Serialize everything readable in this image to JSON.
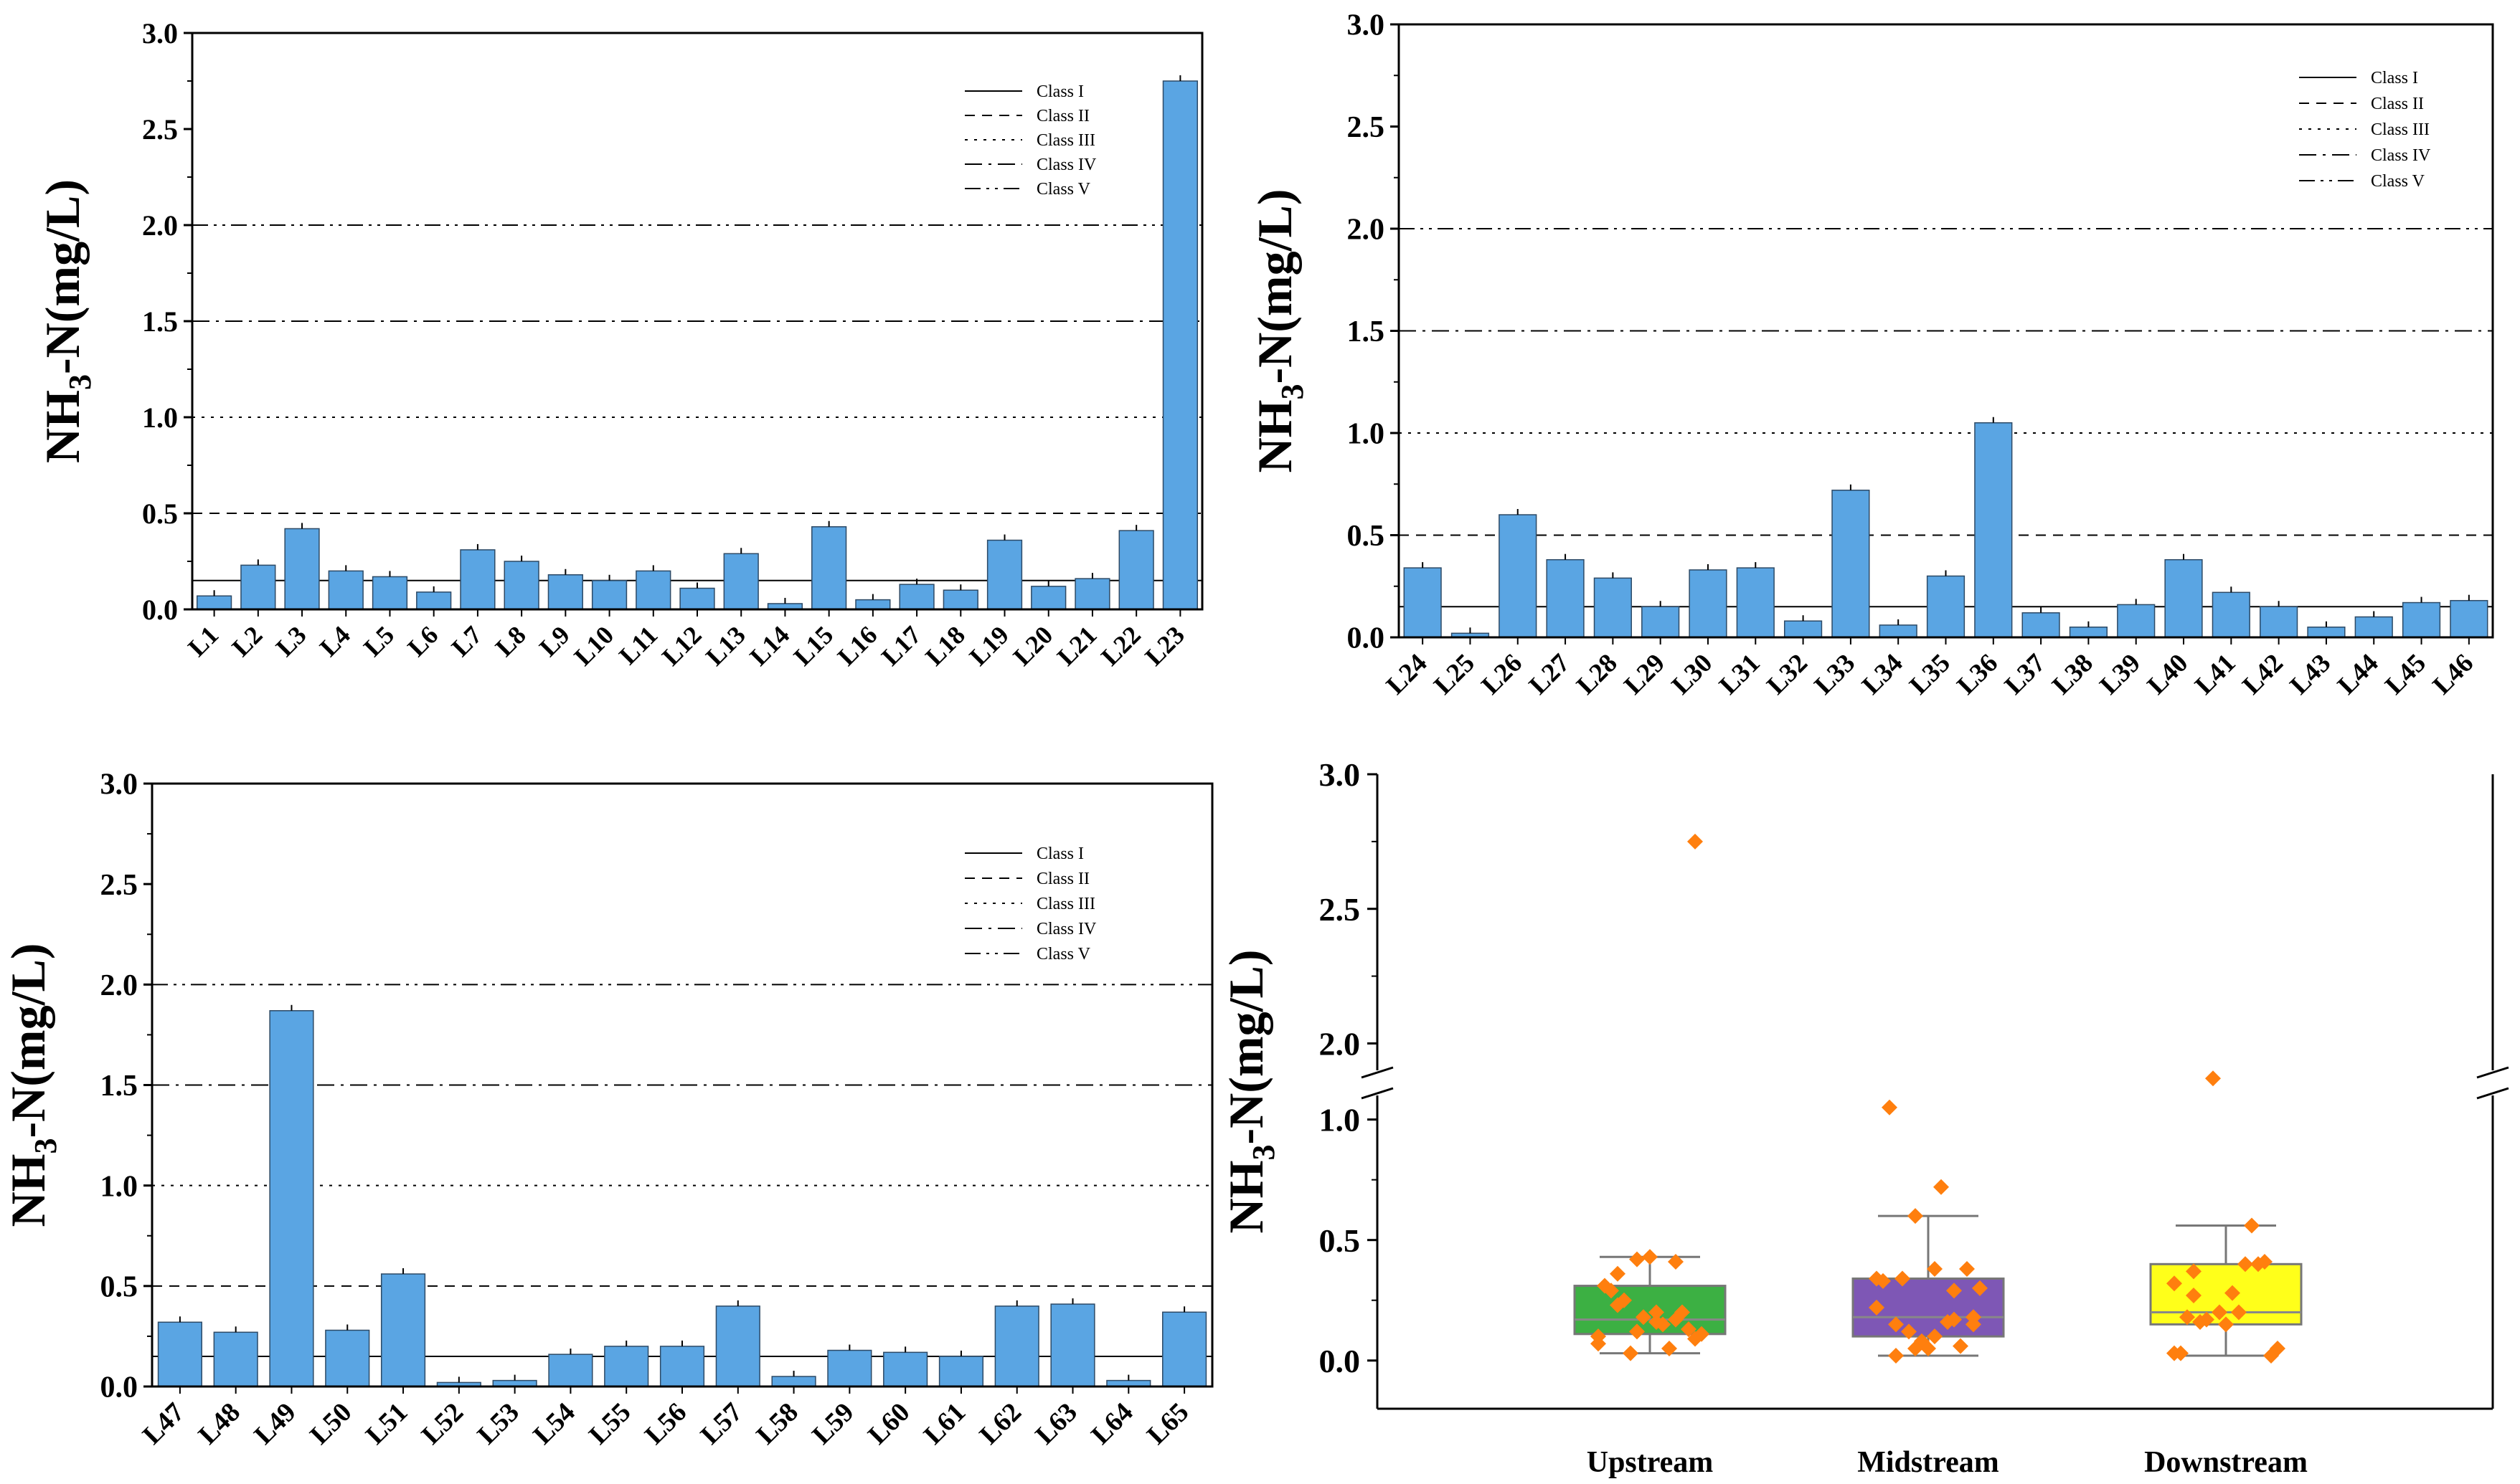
{
  "figure": {
    "legend_items": [
      "Class I",
      "Class II",
      "Class III",
      "Class IV",
      "Class V"
    ],
    "colors": {
      "bar": "#5aa5e3",
      "bar_stroke": "#2d4a66",
      "axis": "#000000",
      "point": "#ff7f0e"
    }
  },
  "chart_data": [
    {
      "type": "bar",
      "panel": "top-left",
      "ylabel": {
        "main": "NH",
        "sub": "3",
        "rest": "-N(mg/L)"
      },
      "ylim": [
        0,
        3.0
      ],
      "yticks": [
        "0.0",
        "0.5",
        "1.0",
        "1.5",
        "2.0",
        "2.5",
        "3.0"
      ],
      "categories": [
        "L1",
        "L2",
        "L3",
        "L4",
        "L5",
        "L6",
        "L7",
        "L8",
        "L9",
        "L10",
        "L11",
        "L12",
        "L13",
        "L14",
        "L15",
        "L16",
        "L17",
        "L18",
        "L19",
        "L20",
        "L21",
        "L22",
        "L23"
      ],
      "values": [
        0.07,
        0.23,
        0.42,
        0.2,
        0.17,
        0.09,
        0.31,
        0.25,
        0.18,
        0.15,
        0.2,
        0.11,
        0.29,
        0.03,
        0.43,
        0.05,
        0.13,
        0.1,
        0.36,
        0.12,
        0.16,
        0.41,
        2.75
      ],
      "legend": "top-right",
      "reference_lines": [
        {
          "name": "Class I",
          "value": 0.15
        },
        {
          "name": "Class II",
          "value": 0.5
        },
        {
          "name": "Class III",
          "value": 1.0
        },
        {
          "name": "Class IV",
          "value": 1.5
        },
        {
          "name": "Class V",
          "value": 2.0
        }
      ]
    },
    {
      "type": "bar",
      "panel": "top-right",
      "ylabel": {
        "main": "NH",
        "sub": "3",
        "rest": "-N(mg/L)"
      },
      "ylim": [
        0,
        3.0
      ],
      "yticks": [
        "0.0",
        "0.5",
        "1.0",
        "1.5",
        "2.0",
        "2.5",
        "3.0"
      ],
      "categories": [
        "L24",
        "L25",
        "L26",
        "L27",
        "L28",
        "L29",
        "L30",
        "L31",
        "L32",
        "L33",
        "L34",
        "L35",
        "L36",
        "L37",
        "L38",
        "L39",
        "L40",
        "L41",
        "L42",
        "L43",
        "L44",
        "L45",
        "L46"
      ],
      "values": [
        0.34,
        0.02,
        0.6,
        0.38,
        0.29,
        0.15,
        0.33,
        0.34,
        0.08,
        0.72,
        0.06,
        0.3,
        1.05,
        0.12,
        0.05,
        0.16,
        0.38,
        0.22,
        0.15,
        0.05,
        0.1,
        0.17,
        0.18
      ],
      "legend": "top-right",
      "reference_lines": [
        {
          "name": "Class I",
          "value": 0.15
        },
        {
          "name": "Class II",
          "value": 0.5
        },
        {
          "name": "Class III",
          "value": 1.0
        },
        {
          "name": "Class IV",
          "value": 1.5
        },
        {
          "name": "Class V",
          "value": 2.0
        }
      ]
    },
    {
      "type": "bar",
      "panel": "bottom-left",
      "ylabel": {
        "main": "NH",
        "sub": "3",
        "rest": "-N(mg/L)"
      },
      "ylim": [
        0,
        3.0
      ],
      "yticks": [
        "0.0",
        "0.5",
        "1.0",
        "1.5",
        "2.0",
        "2.5",
        "3.0"
      ],
      "categories": [
        "L47",
        "L48",
        "L49",
        "L50",
        "L51",
        "L52",
        "L53",
        "L54",
        "L55",
        "L56",
        "L57",
        "L58",
        "L59",
        "L60",
        "L61",
        "L62",
        "L63",
        "L64",
        "L65"
      ],
      "values": [
        0.32,
        0.27,
        1.87,
        0.28,
        0.56,
        0.02,
        0.03,
        0.16,
        0.2,
        0.2,
        0.4,
        0.05,
        0.18,
        0.17,
        0.15,
        0.4,
        0.41,
        0.03,
        0.37
      ],
      "legend": "top-right",
      "reference_lines": [
        {
          "name": "Class I",
          "value": 0.15
        },
        {
          "name": "Class II",
          "value": 0.5
        },
        {
          "name": "Class III",
          "value": 1.0
        },
        {
          "name": "Class IV",
          "value": 1.5
        },
        {
          "name": "Class V",
          "value": 2.0
        }
      ]
    },
    {
      "type": "box",
      "panel": "bottom-right",
      "ylabel": {
        "main": "NH",
        "sub": "3",
        "rest": "-N(mg/L)"
      },
      "ylim": [
        -0.2,
        3.0
      ],
      "axis_break": [
        1.1,
        1.9
      ],
      "yticks": [
        "0.0",
        "0.5",
        "1.0",
        "2.0",
        "2.5",
        "3.0"
      ],
      "categories": [
        "Upstream",
        "Midstream",
        "Downstream"
      ],
      "groups": [
        {
          "name": "Upstream",
          "color": "#3cb043",
          "min": 0.03,
          "q1": 0.11,
          "median": 0.17,
          "q3": 0.31,
          "max": 0.43,
          "points": [
            0.07,
            0.23,
            0.42,
            0.2,
            0.17,
            0.09,
            0.31,
            0.25,
            0.18,
            0.15,
            0.2,
            0.11,
            0.29,
            0.03,
            0.43,
            0.05,
            0.13,
            0.1,
            0.36,
            0.12,
            0.16,
            0.41,
            2.75
          ]
        },
        {
          "name": "Midstream",
          "color": "#7e57b5",
          "min": 0.02,
          "q1": 0.1,
          "median": 0.18,
          "q3": 0.34,
          "max": 0.6,
          "points": [
            0.34,
            0.02,
            0.6,
            0.38,
            0.29,
            0.15,
            0.33,
            0.34,
            0.08,
            0.72,
            0.06,
            0.3,
            1.05,
            0.12,
            0.05,
            0.16,
            0.38,
            0.22,
            0.15,
            0.05,
            0.1,
            0.17,
            0.18
          ]
        },
        {
          "name": "Downstream",
          "color": "#ffff1a",
          "min": 0.02,
          "q1": 0.15,
          "median": 0.2,
          "q3": 0.4,
          "max": 0.56,
          "points": [
            0.32,
            0.27,
            1.87,
            0.28,
            0.56,
            0.02,
            0.03,
            0.16,
            0.2,
            0.2,
            0.4,
            0.05,
            0.18,
            0.17,
            0.15,
            0.4,
            0.41,
            0.03,
            0.37
          ]
        }
      ]
    }
  ]
}
